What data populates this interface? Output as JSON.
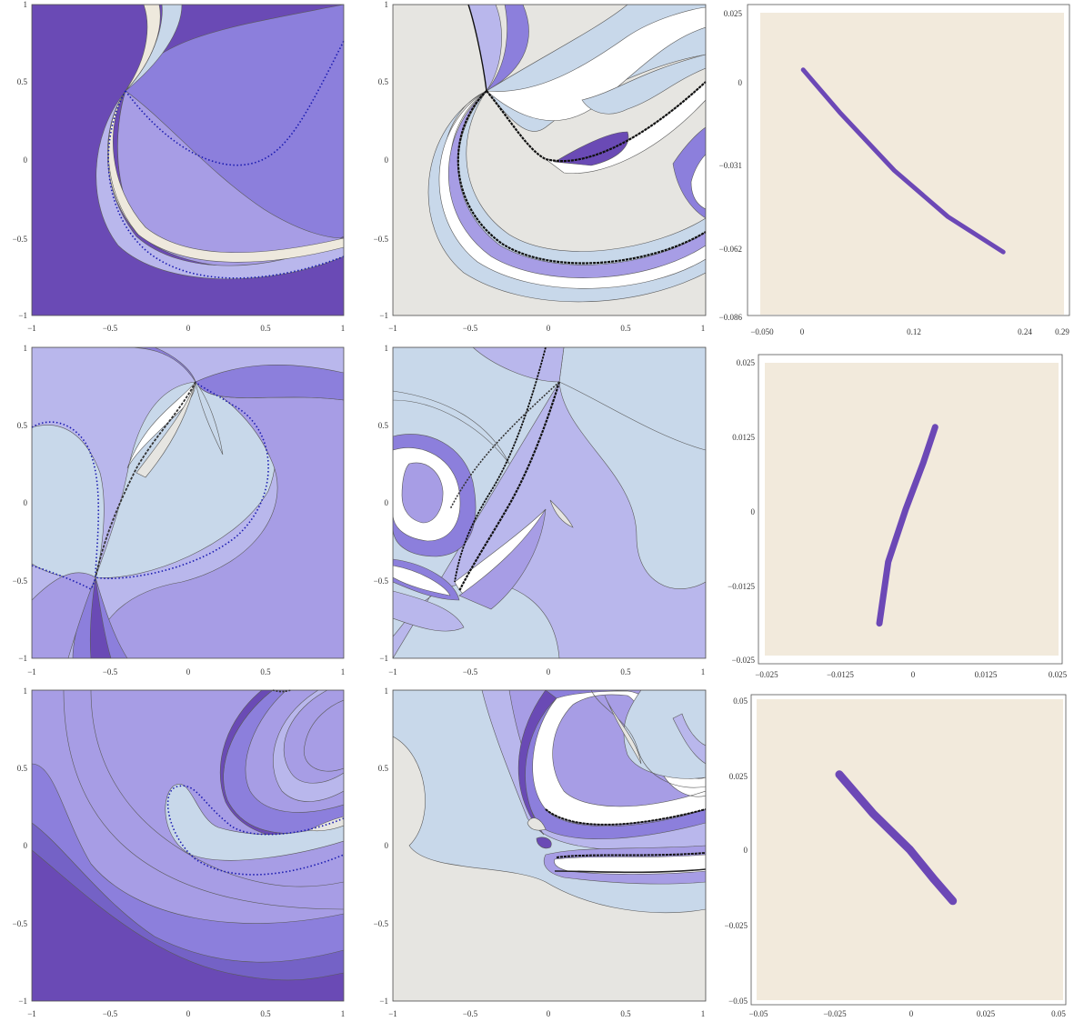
{
  "colors": {
    "deep": "#6a4ab5",
    "mid": "#8c7fdc",
    "medium": "#a79de5",
    "light": "#b9b7ec",
    "pale_blue": "#c8d8ea",
    "cream": "#eee9dd",
    "grey": "#e6e5e1",
    "white": "#ffffff",
    "contour": "#5a5a5a",
    "dotted_blue": "#1a1ab0",
    "zoom_bg": "#f2eadc",
    "zoom_region": "#6c48b6"
  },
  "chart_data": [
    {
      "type": "heatmap",
      "panel": "row1-left",
      "x_ticks": [
        "−1",
        "−0.5",
        "0",
        "0.5",
        "1"
      ],
      "y_ticks": [
        "−1",
        "−0.5",
        "0",
        "0.5",
        "1"
      ],
      "xlim": [
        -1,
        1
      ],
      "ylim": [
        -1,
        1
      ],
      "legend": "none"
    },
    {
      "type": "heatmap",
      "panel": "row1-middle",
      "x_ticks": [
        "−1",
        "−0.5",
        "0",
        "0.5",
        "1"
      ],
      "y_ticks": [
        "−1",
        "−0.5",
        "0",
        "0.5",
        "1"
      ],
      "xlim": [
        -1,
        1
      ],
      "ylim": [
        -1,
        1
      ],
      "legend": "none"
    },
    {
      "type": "scatter",
      "panel": "row1-right",
      "x_ticks": [
        "−0.050",
        "0",
        "0.12",
        "0.24",
        "0.29"
      ],
      "y_ticks": [
        "−0.086",
        "−0.062",
        "−0.031",
        "0",
        "0.025"
      ],
      "xlim": [
        -0.05,
        0.29
      ],
      "ylim": [
        -0.086,
        0.025
      ],
      "region_path": [
        [
          -0.002,
          0.004
        ],
        [
          0.04,
          -0.012
        ],
        [
          0.1,
          -0.033
        ],
        [
          0.16,
          -0.05
        ],
        [
          0.222,
          -0.063
        ]
      ],
      "legend": "none"
    },
    {
      "type": "heatmap",
      "panel": "row2-left",
      "x_ticks": [
        "−1",
        "−0.5",
        "0",
        "0.5",
        "1"
      ],
      "y_ticks": [
        "−1",
        "−0.5",
        "0",
        "0.5",
        "1"
      ],
      "xlim": [
        -1,
        1
      ],
      "ylim": [
        -1,
        1
      ],
      "legend": "none"
    },
    {
      "type": "heatmap",
      "panel": "row2-middle",
      "x_ticks": [
        "−1",
        "−0.5",
        "0",
        "0.5",
        "1"
      ],
      "y_ticks": [
        "−1",
        "−0.5",
        "0",
        "0.5",
        "1"
      ],
      "xlim": [
        -1,
        1
      ],
      "ylim": [
        -1,
        1
      ],
      "legend": "none"
    },
    {
      "type": "scatter",
      "panel": "row2-right",
      "x_ticks": [
        "−0.025",
        "−0.0125",
        "0",
        "0.0125",
        "0.025"
      ],
      "y_ticks": [
        "−0.025",
        "−0.0125",
        "0",
        "0.0125",
        "0.025"
      ],
      "xlim": [
        -0.025,
        0.025
      ],
      "ylim": [
        -0.025,
        0.025
      ],
      "region_path": [
        [
          -0.0055,
          -0.0195
        ],
        [
          -0.004,
          -0.009
        ],
        [
          -0.001,
          0.0
        ],
        [
          0.002,
          0.008
        ],
        [
          0.004,
          0.014
        ]
      ],
      "legend": "none"
    },
    {
      "type": "heatmap",
      "panel": "row3-left",
      "x_ticks": [
        "−1",
        "−0.5",
        "0",
        "0.5",
        "1"
      ],
      "y_ticks": [
        "−1",
        "−0.5",
        "0",
        "0.5",
        "1"
      ],
      "xlim": [
        -1,
        1
      ],
      "ylim": [
        -1,
        1
      ],
      "legend": "none"
    },
    {
      "type": "heatmap",
      "panel": "row3-middle",
      "x_ticks": [
        "−1",
        "−0.5",
        "0",
        "0.5",
        "1"
      ],
      "y_ticks": [
        "−1",
        "−0.5",
        "0",
        "0.5",
        "1"
      ],
      "xlim": [
        -1,
        1
      ],
      "ylim": [
        -1,
        1
      ],
      "legend": "none"
    },
    {
      "type": "scatter",
      "panel": "row3-right",
      "x_ticks": [
        "−0.05",
        "−0.025",
        "0",
        "0.025",
        "0.05"
      ],
      "y_ticks": [
        "−0.05",
        "−0.025",
        "0",
        "0.025",
        "0.05"
      ],
      "xlim": [
        -0.05,
        0.05
      ],
      "ylim": [
        -0.05,
        0.05
      ],
      "region_path": [
        [
          -0.023,
          0.025
        ],
        [
          -0.012,
          0.012
        ],
        [
          0.0,
          0.0
        ],
        [
          0.008,
          -0.01
        ],
        [
          0.014,
          -0.017
        ]
      ],
      "legend": "none"
    }
  ]
}
